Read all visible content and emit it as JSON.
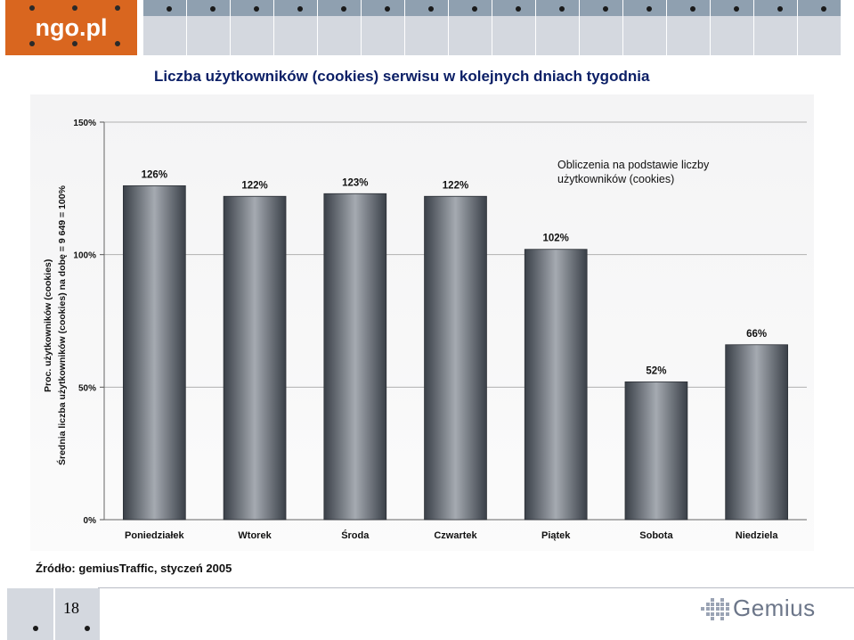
{
  "header": {
    "logo_text": "ngo.pl",
    "title": "Liczba użytkowników (cookies) serwisu w kolejnych dniach tygodnia"
  },
  "chart_data": {
    "type": "bar",
    "categories": [
      "Poniedziałek",
      "Wtorek",
      "Środa",
      "Czwartek",
      "Piątek",
      "Sobota",
      "Niedziela"
    ],
    "values": [
      126,
      122,
      123,
      122,
      102,
      52,
      66
    ],
    "value_labels": [
      "126%",
      "122%",
      "123%",
      "122%",
      "102%",
      "52%",
      "66%"
    ],
    "ylim": [
      0,
      150
    ],
    "yticks": [
      0,
      50,
      100,
      150
    ],
    "ytick_labels": [
      "0%",
      "50%",
      "100%",
      "150%"
    ],
    "ylabel_line1": "Proc. użytkowników (cookies)",
    "ylabel_line2": "Średnia liczba użytkowników (cookies) na dobę = 9 649 = 100%",
    "annotation_line1": "Obliczenia na podstawie liczby",
    "annotation_line2": "użytkowników (cookies)",
    "grid": true,
    "colors": {
      "bar_edge": "#3a4048",
      "bar_center": "#a5aab1",
      "grid": "#b0b0b0"
    }
  },
  "footer": {
    "source": "Źródło: gemiusTraffic, styczeń 2005",
    "page_number": "18",
    "brand": "Gemius"
  }
}
